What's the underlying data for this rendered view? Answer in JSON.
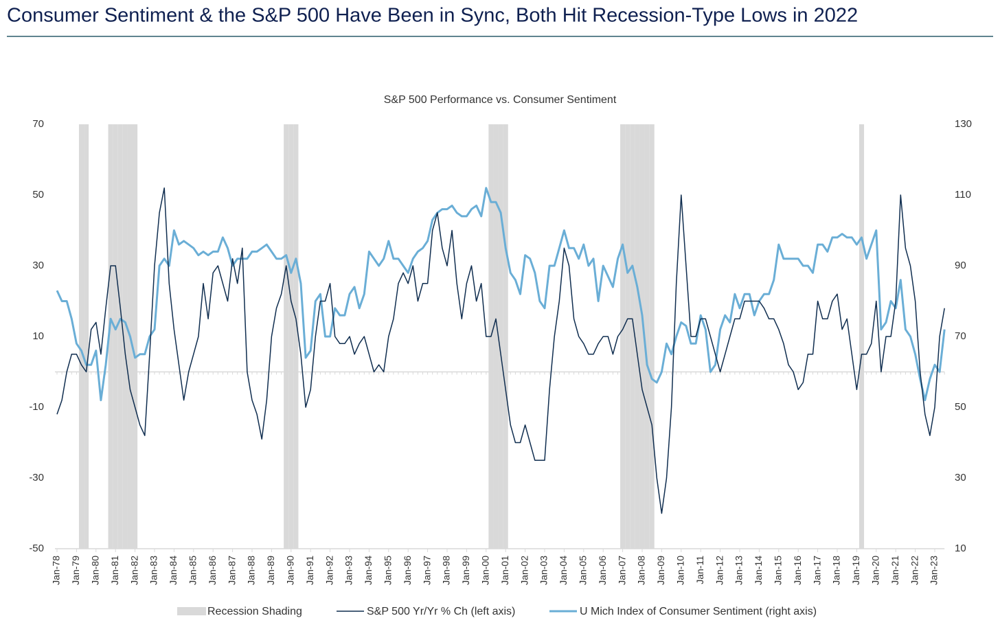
{
  "header": {
    "title": "Consumer Sentiment & the S&P 500 Have Been in Sync, Both Hit Recession-Type Lows in 2022"
  },
  "chart_data": {
    "type": "line",
    "title": "S&P 500 Performance vs. Consumer Sentiment",
    "categories": [
      "Jan-78",
      null,
      null,
      null,
      "Jan-79",
      null,
      null,
      null,
      "Jan-80",
      null,
      null,
      null,
      "Jan-81",
      null,
      null,
      null,
      "Jan-82",
      null,
      null,
      null,
      "Jan-83",
      null,
      null,
      null,
      "Jan-84",
      null,
      null,
      null,
      "Jan-85",
      null,
      null,
      null,
      "Jan-86",
      null,
      null,
      null,
      "Jan-87",
      null,
      null,
      null,
      "Jan-88",
      null,
      null,
      null,
      "Jan-89",
      null,
      null,
      null,
      "Jan-90",
      null,
      null,
      null,
      "Jan-91",
      null,
      null,
      null,
      "Jan-92",
      null,
      null,
      null,
      "Jan-93",
      null,
      null,
      null,
      "Jan-94",
      null,
      null,
      null,
      "Jan-95",
      null,
      null,
      null,
      "Jan-96",
      null,
      null,
      null,
      "Jan-97",
      null,
      null,
      null,
      "Jan-98",
      null,
      null,
      null,
      "Jan-99",
      null,
      null,
      null,
      "Jan-00",
      null,
      null,
      null,
      "Jan-01",
      null,
      null,
      null,
      "Jan-02",
      null,
      null,
      null,
      "Jan-03",
      null,
      null,
      null,
      "Jan-04",
      null,
      null,
      null,
      "Jan-05",
      null,
      null,
      null,
      "Jan-06",
      null,
      null,
      null,
      "Jan-07",
      null,
      null,
      null,
      "Jan-08",
      null,
      null,
      null,
      "Jan-09",
      null,
      null,
      null,
      "Jan-10",
      null,
      null,
      null,
      "Jan-11",
      null,
      null,
      null,
      "Jan-12",
      null,
      null,
      null,
      "Jan-13",
      null,
      null,
      null,
      "Jan-14",
      null,
      null,
      null,
      "Jan-15",
      null,
      null,
      null,
      "Jan-16",
      null,
      null,
      null,
      "Jan-17",
      null,
      null,
      null,
      "Jan-18",
      null,
      null,
      null,
      "Jan-19",
      null,
      null,
      null,
      "Jan-20",
      null,
      null,
      null,
      "Jan-21",
      null,
      null,
      null,
      "Jan-22",
      null,
      null,
      null,
      "Jan-23",
      null,
      null
    ],
    "series": [
      {
        "name": "Recession Shading",
        "type": "band",
        "color": "#d9d9d9",
        "values": [
          0,
          0,
          0,
          0,
          0,
          1,
          1,
          0,
          0,
          0,
          0,
          1,
          1,
          1,
          1,
          1,
          1,
          0,
          0,
          0,
          0,
          0,
          0,
          0,
          0,
          0,
          0,
          0,
          0,
          0,
          0,
          0,
          0,
          0,
          0,
          0,
          0,
          0,
          0,
          0,
          0,
          0,
          0,
          0,
          0,
          0,
          0,
          1,
          1,
          1,
          0,
          0,
          0,
          0,
          0,
          0,
          0,
          0,
          0,
          0,
          0,
          0,
          0,
          0,
          0,
          0,
          0,
          0,
          0,
          0,
          0,
          0,
          0,
          0,
          0,
          0,
          0,
          0,
          0,
          0,
          0,
          0,
          0,
          0,
          0,
          0,
          0,
          0,
          0,
          1,
          1,
          1,
          1,
          0,
          0,
          0,
          0,
          0,
          0,
          0,
          0,
          0,
          0,
          0,
          0,
          0,
          0,
          0,
          0,
          0,
          0,
          0,
          0,
          0,
          0,
          0,
          1,
          1,
          1,
          1,
          1,
          1,
          1,
          0,
          0,
          0,
          0,
          0,
          0,
          0,
          0,
          0,
          0,
          0,
          0,
          0,
          0,
          0,
          0,
          0,
          0,
          0,
          0,
          0,
          0,
          0,
          0,
          0,
          0,
          0,
          0,
          0,
          0,
          0,
          0,
          0,
          0,
          0,
          0,
          0,
          0,
          0,
          0,
          0,
          0,
          1,
          0,
          0,
          0,
          0,
          0,
          0,
          0,
          0,
          0,
          0,
          0,
          0,
          0,
          0,
          0,
          0,
          0
        ]
      },
      {
        "name": "S&P 500 Yr/Yr % Ch (left axis)",
        "type": "line",
        "color": "#0f2d4f",
        "values": [
          -12,
          -8,
          0,
          5,
          5,
          2,
          0,
          12,
          14,
          5,
          18,
          30,
          30,
          18,
          5,
          -5,
          -10,
          -15,
          -18,
          5,
          30,
          45,
          52,
          25,
          12,
          2,
          -8,
          0,
          5,
          10,
          25,
          15,
          28,
          30,
          25,
          20,
          32,
          25,
          35,
          0,
          -8,
          -12,
          -19,
          -8,
          10,
          18,
          22,
          30,
          20,
          15,
          5,
          -10,
          -5,
          10,
          20,
          20,
          25,
          10,
          8,
          8,
          10,
          5,
          8,
          10,
          5,
          0,
          2,
          0,
          10,
          15,
          25,
          28,
          25,
          30,
          20,
          25,
          25,
          40,
          45,
          35,
          30,
          40,
          25,
          15,
          25,
          30,
          20,
          25,
          10,
          10,
          15,
          5,
          -5,
          -15,
          -20,
          -20,
          -15,
          -20,
          -25,
          -25,
          -25,
          -5,
          10,
          20,
          35,
          30,
          15,
          10,
          8,
          5,
          5,
          8,
          10,
          10,
          5,
          10,
          12,
          15,
          15,
          5,
          -5,
          -10,
          -15,
          -30,
          -40,
          -30,
          -10,
          25,
          50,
          30,
          10,
          10,
          15,
          15,
          10,
          5,
          0,
          5,
          10,
          15,
          15,
          20,
          20,
          20,
          20,
          18,
          15,
          15,
          12,
          8,
          2,
          0,
          -5,
          -3,
          5,
          5,
          20,
          15,
          15,
          20,
          22,
          12,
          15,
          5,
          -5,
          5,
          5,
          8,
          20,
          0,
          10,
          10,
          20,
          50,
          35,
          30,
          20,
          0,
          -12,
          -18,
          -10,
          10,
          18
        ]
      },
      {
        "name": "U Mich Index of Consumer Sentiment (right axis)",
        "type": "line",
        "axis": "y2",
        "color": "#6aaed6",
        "values": [
          83,
          80,
          80,
          75,
          68,
          66,
          62,
          62,
          66,
          52,
          62,
          75,
          72,
          75,
          74,
          70,
          64,
          65,
          65,
          70,
          72,
          90,
          92,
          90,
          100,
          96,
          97,
          96,
          95,
          93,
          94,
          93,
          94,
          94,
          98,
          95,
          90,
          92,
          92,
          92,
          94,
          94,
          95,
          96,
          94,
          92,
          92,
          93,
          88,
          92,
          85,
          64,
          66,
          80,
          82,
          70,
          70,
          78,
          76,
          76,
          82,
          84,
          78,
          82,
          94,
          92,
          90,
          92,
          97,
          92,
          92,
          90,
          88,
          92,
          94,
          95,
          97,
          103,
          105,
          106,
          106,
          107,
          105,
          104,
          104,
          106,
          107,
          104,
          112,
          108,
          108,
          105,
          95,
          88,
          86,
          82,
          93,
          92,
          88,
          80,
          78,
          90,
          90,
          95,
          100,
          95,
          95,
          92,
          96,
          90,
          92,
          80,
          90,
          87,
          84,
          92,
          96,
          88,
          90,
          84,
          76,
          62,
          58,
          57,
          60,
          68,
          65,
          70,
          74,
          73,
          68,
          68,
          76,
          72,
          60,
          62,
          72,
          76,
          74,
          82,
          78,
          82,
          82,
          76,
          80,
          82,
          82,
          86,
          96,
          92,
          92,
          92,
          92,
          90,
          90,
          88,
          96,
          96,
          94,
          98,
          98,
          99,
          98,
          98,
          96,
          98,
          92,
          96,
          100,
          72,
          74,
          80,
          78,
          86,
          72,
          70,
          65,
          58,
          52,
          58,
          62,
          60,
          72
        ]
      }
    ],
    "ylim": [
      -50,
      70
    ],
    "yticks": [
      70,
      50,
      30,
      10,
      -10,
      -30,
      -50
    ],
    "y2lim": [
      10,
      130
    ],
    "y2ticks": [
      130,
      110,
      90,
      70,
      50,
      30,
      10
    ]
  }
}
